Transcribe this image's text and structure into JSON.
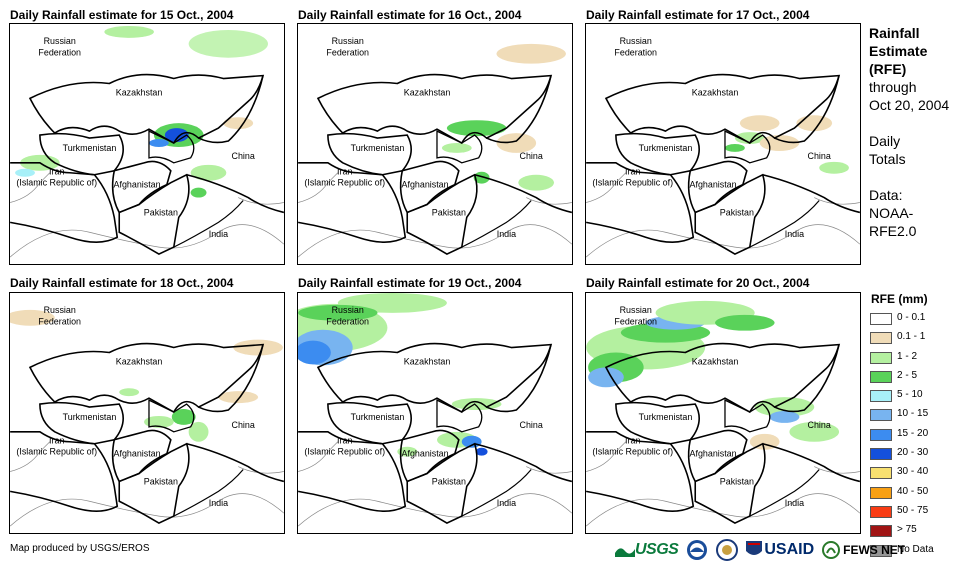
{
  "panels": [
    {
      "title": "Daily Rainfall estimate for 15 Oct., 2004",
      "day": 15
    },
    {
      "title": "Daily Rainfall estimate for 16 Oct., 2004",
      "day": 16
    },
    {
      "title": "Daily Rainfall estimate for 17 Oct., 2004",
      "day": 17
    },
    {
      "title": "Daily Rainfall estimate for 18 Oct., 2004",
      "day": 18
    },
    {
      "title": "Daily Rainfall estimate for 19 Oct., 2004",
      "day": 19
    },
    {
      "title": "Daily Rainfall estimate for 20 Oct., 2004",
      "day": 20
    }
  ],
  "country_labels": {
    "russia_line1": "Russian",
    "russia_line2": "Federation",
    "kazakhstan": "Kazakhstan",
    "turkmenistan": "Turkmenistan",
    "iran_line1": "Iran",
    "iran_line2": "(Islamic Republic of)",
    "afghanistan": "Afghanistan",
    "pakistan": "Pakistan",
    "china": "China",
    "india": "India"
  },
  "side_info": {
    "heading_line1": "Rainfall",
    "heading_line2": "Estimate",
    "heading_line3": "(RFE)",
    "through_line1": "through",
    "through_line2": "Oct 20, 2004",
    "totals_line1": "Daily",
    "totals_line2": "Totals",
    "data_line1": "Data:",
    "data_line2": "NOAA-",
    "data_line3": "RFE2.0"
  },
  "legend": {
    "title": "RFE (mm)",
    "items": [
      {
        "label": "0 - 0.1",
        "color": "#ffffff"
      },
      {
        "label": "0.1 - 1",
        "color": "#f0dcb8"
      },
      {
        "label": "1 - 2",
        "color": "#b4f0a0"
      },
      {
        "label": "2 - 5",
        "color": "#5ad25a"
      },
      {
        "label": "5 - 10",
        "color": "#a8f0f8"
      },
      {
        "label": "10 - 15",
        "color": "#78b4f0"
      },
      {
        "label": "15 - 20",
        "color": "#3c8cf0"
      },
      {
        "label": "20 - 30",
        "color": "#1450dc"
      },
      {
        "label": "30 - 40",
        "color": "#f8e070"
      },
      {
        "label": "40 - 50",
        "color": "#f8a014"
      },
      {
        "label": "50 - 75",
        "color": "#f83c14"
      },
      {
        "label": "> 75",
        "color": "#a01414"
      },
      {
        "label": "No Data",
        "color": "#969696"
      }
    ]
  },
  "footer": {
    "credit": "Map produced by USGS/EROS",
    "logos": [
      "USGS",
      "NOAA",
      "DOS",
      "USAID",
      "FEWS NET"
    ]
  }
}
